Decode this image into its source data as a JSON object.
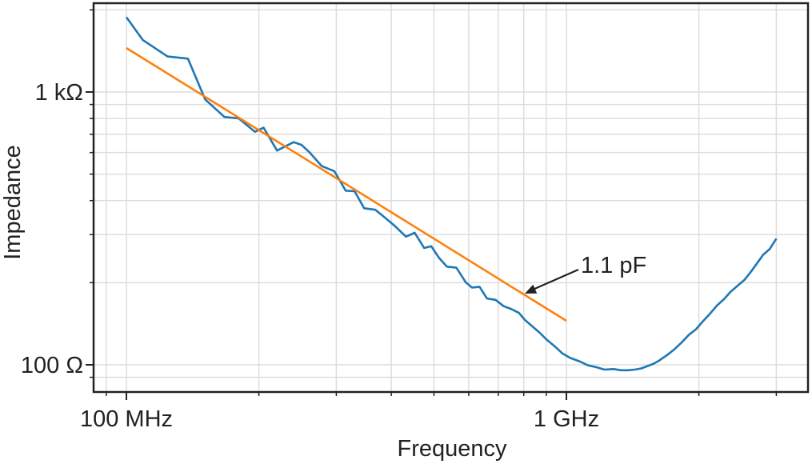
{
  "chart_data": {
    "type": "line",
    "xlabel": "Frequency",
    "ylabel": "Impedance",
    "x_scale": "log",
    "y_scale": "log",
    "xlim_hz": [
      66000000,
      4500000000
    ],
    "ylim_ohm": [
      79,
      3200
    ],
    "x_ticks": [
      {
        "value": 100000000,
        "label": "100 MHz"
      },
      {
        "value": 1000000000,
        "label": "1 GHz"
      }
    ],
    "y_ticks": [
      {
        "value": 1000,
        "label": "1 kΩ"
      },
      {
        "value": 100,
        "label": "100 Ω"
      }
    ],
    "grid": true,
    "annotation": {
      "text": "1.1 pF",
      "arrow_to_x_hz": 800000000
    },
    "colors": {
      "measured": "#1f77b4",
      "fit": "#ff7f0e",
      "grid": "#dddddd",
      "frame": "#222222"
    },
    "series": [
      {
        "role": "measured",
        "x": [
          100000000.0,
          109000000.0,
          124000000.0,
          138000000.0,
          151000000.0,
          167000000.0,
          180000000.0,
          196000000.0,
          205000000.0,
          220000000.0,
          240000000.0,
          250000000.0,
          261000000.0,
          278000000.0,
          297000000.0,
          315000000.0,
          330000000.0,
          347000000.0,
          368000000.0,
          388000000.0,
          408000000.0,
          432000000.0,
          452000000.0,
          475000000.0,
          493000000.0,
          513000000.0,
          535000000.0,
          562000000.0,
          590000000.0,
          610000000.0,
          635000000.0,
          660000000.0,
          690000000.0,
          720000000.0,
          750000000.0,
          780000000.0,
          805000000.0,
          830000000.0,
          870000000.0,
          900000000.0,
          940000000.0,
          980000000.0,
          1020000000.0,
          1070000000.0,
          1120000000.0,
          1170000000.0,
          1220000000.0,
          1280000000.0,
          1330000000.0,
          1380000000.0,
          1430000000.0,
          1480000000.0,
          1530000000.0,
          1580000000.0,
          1630000000.0,
          1700000000.0,
          1760000000.0,
          1830000000.0,
          1900000000.0,
          1970000000.0,
          2040000000.0,
          2120000000.0,
          2200000000.0,
          2280000000.0,
          2360000000.0,
          2450000000.0,
          2540000000.0,
          2630000000.0,
          2720000000.0,
          2800000000.0,
          2900000000.0,
          3000000000.0
        ],
        "y": [
          1880,
          1550,
          1350,
          1325,
          940,
          810,
          800,
          715,
          740,
          610,
          655,
          640,
          600,
          535,
          512,
          435,
          433,
          375,
          370,
          345,
          322,
          295,
          305,
          268,
          272,
          247,
          229,
          227,
          201,
          192,
          193,
          175,
          173,
          164,
          160,
          155,
          146,
          140,
          131,
          124,
          117,
          110,
          106,
          103,
          99.5,
          98,
          96,
          96.5,
          95.5,
          95.5,
          96,
          97,
          99,
          101,
          104,
          109,
          114,
          121,
          129,
          135,
          144,
          154,
          165,
          174,
          185,
          195,
          205,
          220,
          237,
          253,
          266,
          290
        ]
      },
      {
        "role": "fit",
        "label": "1.1 pF",
        "x": [
          100000000.0,
          1000000000.0
        ],
        "y": [
          1450,
          145
        ]
      }
    ]
  }
}
